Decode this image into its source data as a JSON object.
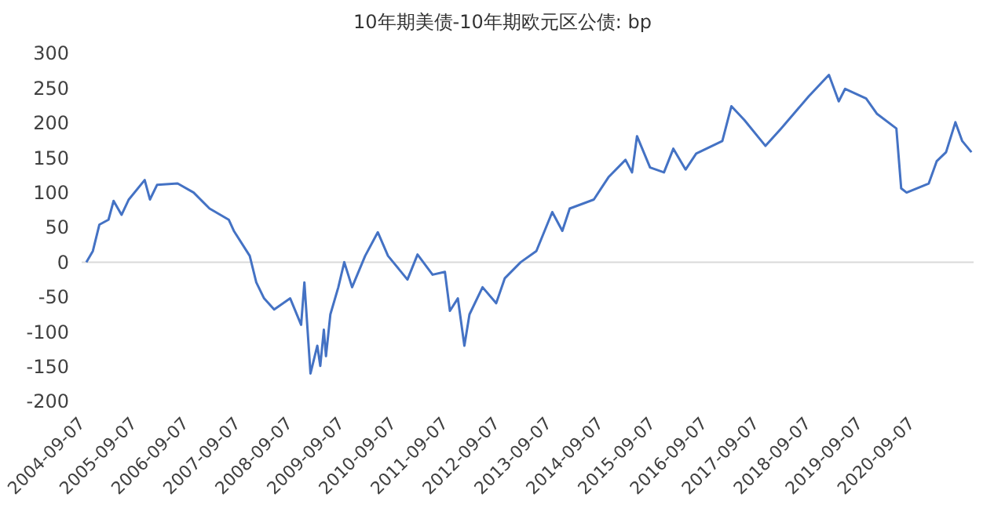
{
  "chart_data": {
    "type": "line",
    "title": "10年期美债-10年期欧元区公债: bp",
    "x": [
      "2004-10-10",
      "2004-11-25",
      "2005-01-10",
      "2005-03-15",
      "2005-04-20",
      "2005-06-15",
      "2005-08-05",
      "2005-11-25",
      "2006-01-01",
      "2006-02-20",
      "2006-07-15",
      "2006-11-05",
      "2007-02-25",
      "2007-07-10",
      "2007-08-15",
      "2007-12-05",
      "2008-01-20",
      "2008-03-15",
      "2008-05-25",
      "2008-09-15",
      "2008-12-01",
      "2008-12-24",
      "2009-02-05",
      "2009-03-25",
      "2009-04-15",
      "2009-05-10",
      "2009-05-25",
      "2009-06-25",
      "2009-08-20",
      "2009-10-01",
      "2009-11-25",
      "2010-02-25",
      "2010-05-25",
      "2010-08-05",
      "2010-12-20",
      "2011-03-01",
      "2011-06-15",
      "2011-09-10",
      "2011-10-15",
      "2011-12-10",
      "2012-01-25",
      "2012-03-01",
      "2012-06-01",
      "2012-09-05",
      "2012-11-05",
      "2013-02-25",
      "2013-06-15",
      "2013-10-05",
      "2013-12-15",
      "2014-02-05",
      "2014-07-25",
      "2014-11-05",
      "2015-03-05",
      "2015-04-20",
      "2015-05-25",
      "2015-08-25",
      "2015-12-01",
      "2016-02-05",
      "2016-05-01",
      "2016-07-15",
      "2017-01-15",
      "2017-03-20",
      "2017-06-20",
      "2017-11-15",
      "2018-03-05",
      "2018-09-15",
      "2019-02-05",
      "2019-04-15",
      "2019-05-30",
      "2019-10-25",
      "2020-01-10",
      "2020-05-25",
      "2020-06-28",
      "2020-08-05",
      "2021-01-08",
      "2021-03-05",
      "2021-05-10",
      "2021-07-15",
      "2021-09-01",
      "2021-11-05"
    ],
    "series": [
      {
        "color": "#4472c4",
        "values": [
          0,
          16,
          54,
          61,
          88,
          68,
          90,
          118,
          90,
          111,
          113,
          100,
          77,
          61,
          45,
          9,
          -29,
          -52,
          -68,
          -52,
          -90,
          -29,
          -160,
          -120,
          -149,
          -97,
          -135,
          -75,
          -36,
          0,
          -36,
          9,
          43,
          9,
          -25,
          11,
          -18,
          -14,
          -70,
          -52,
          -120,
          -75,
          -36,
          -59,
          -23,
          0,
          16,
          72,
          45,
          77,
          90,
          122,
          147,
          129,
          181,
          136,
          129,
          163,
          133,
          156,
          174,
          224,
          204,
          167,
          192,
          238,
          269,
          231,
          249,
          235,
          213,
          192,
          106,
          100,
          113,
          145,
          158,
          201,
          174,
          158
        ]
      }
    ],
    "xlim": [
      "2004-09-07",
      "2021-11-20"
    ],
    "xticks": [
      "2004-09-07",
      "2005-09-07",
      "2006-09-07",
      "2007-09-07",
      "2008-09-07",
      "2009-09-07",
      "2010-09-07",
      "2011-09-07",
      "2012-09-07",
      "2013-09-07",
      "2014-09-07",
      "2015-09-07",
      "2016-09-07",
      "2017-09-07",
      "2018-09-07",
      "2019-09-07",
      "2020-09-07"
    ],
    "ylim": [
      -200,
      300
    ],
    "yticks": [
      -200,
      -150,
      -100,
      -50,
      0,
      50,
      100,
      150,
      200,
      250,
      300
    ],
    "ref_lines": [
      {
        "axis": "y",
        "value": 0,
        "color": "#d9d9d9"
      }
    ],
    "grid": false,
    "marker": "none",
    "line_style": "solid"
  }
}
